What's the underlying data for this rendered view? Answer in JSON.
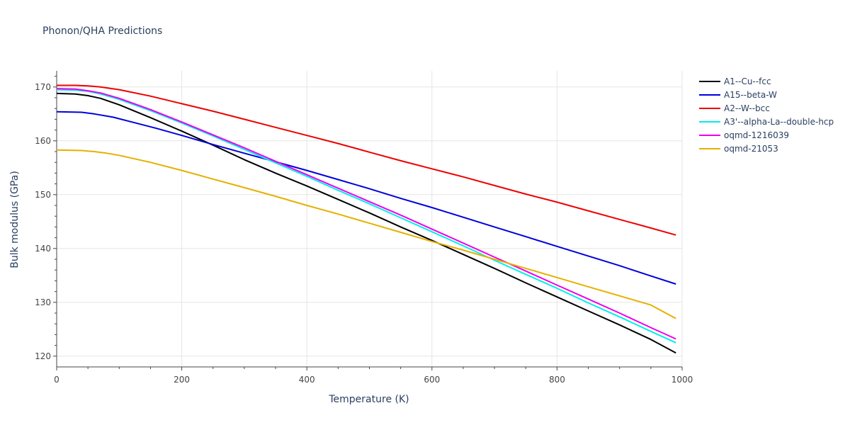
{
  "chart_data": {
    "type": "line",
    "title": "Phonon/QHA Predictions",
    "xlabel": "Temperature (K)",
    "ylabel": "Bulk modulus (GPa)",
    "xlim": [
      0,
      1000
    ],
    "ylim": [
      118,
      173
    ],
    "x_ticks": [
      0,
      200,
      400,
      600,
      800,
      1000
    ],
    "y_ticks": [
      120,
      130,
      140,
      150,
      160,
      170
    ],
    "grid": true,
    "legend_position": "top-right",
    "series": [
      {
        "name": "A1--Cu--fcc",
        "color": "#000000",
        "x": [
          0,
          30,
          50,
          70,
          100,
          150,
          200,
          250,
          300,
          350,
          400,
          450,
          500,
          550,
          600,
          650,
          700,
          750,
          800,
          850,
          900,
          950,
          990
        ],
        "y": [
          168.8,
          168.7,
          168.4,
          167.9,
          166.7,
          164.3,
          161.8,
          159.2,
          156.5,
          154.0,
          151.6,
          149.1,
          146.6,
          144.0,
          141.5,
          138.9,
          136.3,
          133.6,
          131.0,
          128.4,
          125.8,
          123.1,
          120.6
        ]
      },
      {
        "name": "A15--beta-W",
        "color": "#0000dd",
        "x": [
          0,
          40,
          60,
          90,
          120,
          160,
          200,
          250,
          300,
          350,
          400,
          450,
          500,
          550,
          600,
          650,
          700,
          750,
          800,
          850,
          900,
          950,
          990
        ],
        "y": [
          165.4,
          165.3,
          165.0,
          164.4,
          163.5,
          162.3,
          161.0,
          159.3,
          157.7,
          156.1,
          154.5,
          152.8,
          151.1,
          149.3,
          147.6,
          145.8,
          144.0,
          142.2,
          140.4,
          138.6,
          136.8,
          134.9,
          133.4
        ]
      },
      {
        "name": "A2--W--bcc",
        "color": "#ee0000",
        "x": [
          0,
          30,
          50,
          70,
          100,
          150,
          200,
          250,
          300,
          350,
          400,
          450,
          500,
          550,
          600,
          650,
          700,
          750,
          800,
          850,
          900,
          950,
          990
        ],
        "y": [
          170.3,
          170.3,
          170.2,
          170.0,
          169.5,
          168.3,
          166.9,
          165.5,
          164.0,
          162.5,
          161.0,
          159.5,
          157.9,
          156.3,
          154.8,
          153.3,
          151.7,
          150.1,
          148.6,
          147.0,
          145.4,
          143.8,
          142.5
        ]
      },
      {
        "name": "A3'--alpha-La--double-hcp",
        "color": "#00eeee",
        "x": [
          0,
          30,
          50,
          70,
          100,
          150,
          200,
          250,
          300,
          350,
          400,
          450,
          500,
          550,
          600,
          650,
          700,
          750,
          800,
          850,
          900,
          950,
          990
        ],
        "y": [
          169.5,
          169.4,
          169.2,
          168.7,
          167.7,
          165.6,
          163.3,
          160.9,
          158.4,
          155.9,
          153.4,
          150.8,
          148.3,
          145.7,
          143.1,
          140.5,
          137.8,
          135.2,
          132.6,
          129.9,
          127.3,
          124.6,
          122.5
        ]
      },
      {
        "name": "oqmd-1216039",
        "color": "#ee00ee",
        "x": [
          0,
          30,
          50,
          70,
          100,
          150,
          200,
          250,
          300,
          350,
          400,
          450,
          500,
          550,
          600,
          650,
          700,
          750,
          800,
          850,
          900,
          950,
          990
        ],
        "y": [
          169.7,
          169.6,
          169.3,
          168.9,
          167.9,
          165.8,
          163.5,
          161.1,
          158.7,
          156.2,
          153.7,
          151.2,
          148.7,
          146.2,
          143.6,
          141.0,
          138.4,
          135.8,
          133.2,
          130.6,
          128.0,
          125.3,
          123.2
        ]
      },
      {
        "name": "oqmd-21053",
        "color": "#e6b000",
        "x": [
          0,
          40,
          60,
          80,
          100,
          150,
          200,
          250,
          300,
          350,
          400,
          450,
          500,
          550,
          600,
          650,
          700,
          750,
          800,
          850,
          900,
          950,
          990
        ],
        "y": [
          158.3,
          158.2,
          158.0,
          157.7,
          157.3,
          156.0,
          154.5,
          152.9,
          151.3,
          149.7,
          148.0,
          146.4,
          144.7,
          143.0,
          141.3,
          139.7,
          138.0,
          136.3,
          134.6,
          132.9,
          131.2,
          129.5,
          127.0
        ]
      }
    ]
  }
}
